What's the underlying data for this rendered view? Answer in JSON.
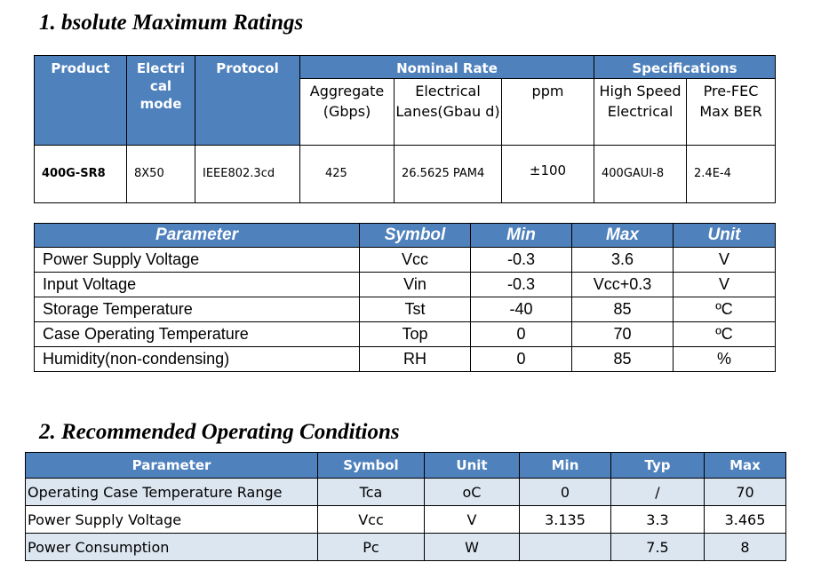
{
  "section1": {
    "title": "1. bsolute Maximum Ratings",
    "table1": {
      "headers": {
        "product": "Product",
        "mode": "Electri cal mode",
        "protocol": "Protocol",
        "nominal_rate": "Nominal Rate",
        "specifications": "Specifications"
      },
      "subheaders": {
        "aggregate": "Aggregate (Gbps)",
        "lanes": "Electrical Lanes(Gbau d)",
        "ppm": "ppm",
        "high_speed": "High Speed Electrical",
        "prefec": "Pre-FEC Max BER"
      },
      "row": {
        "product": "400G-SR8",
        "mode": "8X50",
        "protocol": "IEEE802.3cd",
        "aggregate": "425",
        "lanes": "26.5625 PAM4",
        "ppm": "±100",
        "high_speed": "400GAUI-8",
        "prefec": "2.4E-4"
      }
    },
    "table2": {
      "headers": [
        "Parameter",
        "Symbol",
        "Min",
        "Max",
        "Unit"
      ],
      "rows": [
        [
          "Power Supply Voltage",
          "Vcc",
          "-0.3",
          "3.6",
          "V"
        ],
        [
          "Input Voltage",
          "Vin",
          "-0.3",
          "Vcc+0.3",
          "V"
        ],
        [
          "Storage Temperature",
          "Tst",
          "-40",
          "85",
          "ºC"
        ],
        [
          "Case Operating Temperature",
          "Top",
          "0",
          "70",
          "ºC"
        ],
        [
          "Humidity(non-condensing)",
          "RH",
          "0",
          "85",
          "%"
        ]
      ]
    }
  },
  "section2": {
    "title": "2. Recommended Operating Conditions",
    "table": {
      "headers": [
        "Parameter",
        "Symbol",
        "Unit",
        "Min",
        "Typ",
        "Max"
      ],
      "rows": [
        [
          "Operating Case Temperature Range",
          "Tca",
          "oC",
          "0",
          "/",
          "70"
        ],
        [
          "Power Supply Voltage",
          "Vcc",
          "V",
          "3.135",
          "3.3",
          "3.465"
        ],
        [
          "Power Consumption",
          "Pc",
          "W",
          "",
          "7.5",
          "8"
        ]
      ]
    }
  },
  "colors": {
    "header_blue": "#4f81bd",
    "alt_row": "#dce6f1"
  }
}
